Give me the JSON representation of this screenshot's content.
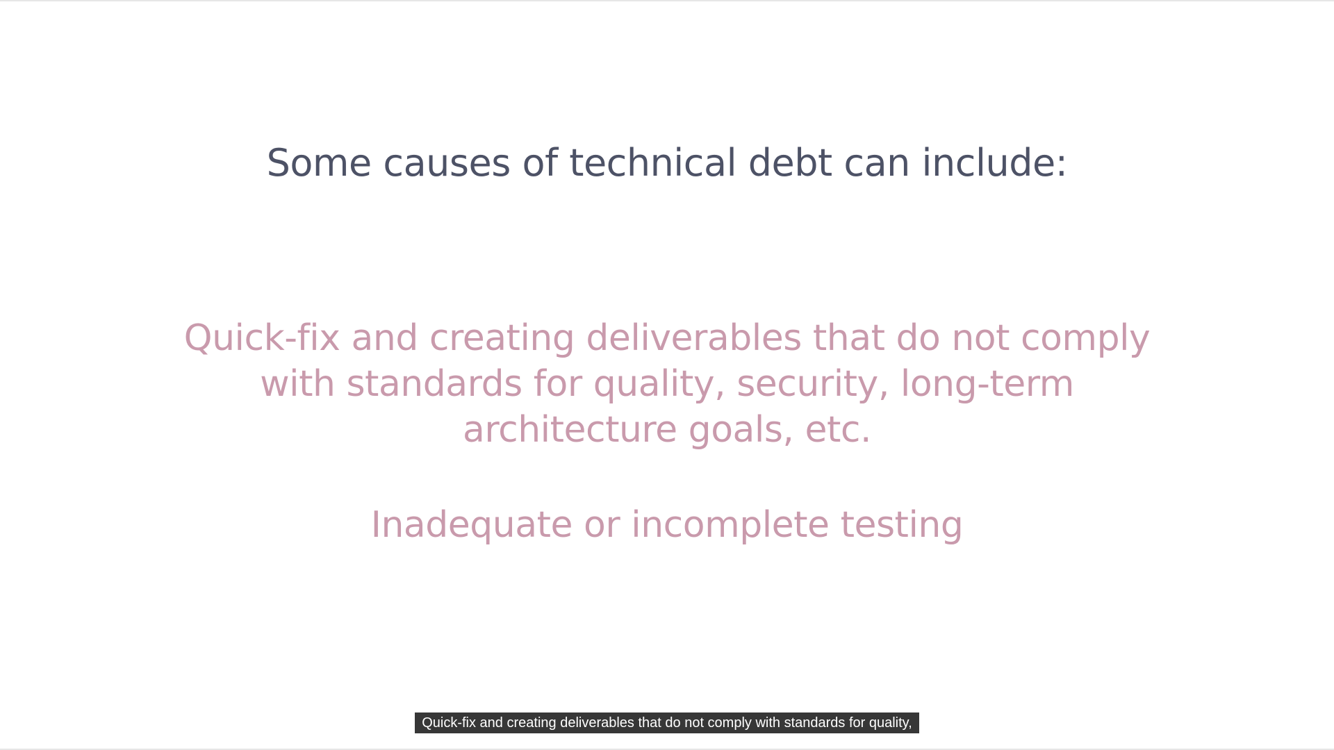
{
  "slide": {
    "title": "Some causes of technical debt can include:",
    "bullets": [
      {
        "lines": [
          "Quick-fix and creating deliverables that do not comply",
          "with standards for quality, security, long-term",
          "architecture goals, etc."
        ]
      },
      {
        "lines": [
          "Inadequate or incomplete testing"
        ]
      }
    ],
    "colors": {
      "title": "#4d5266",
      "bullet": "#c99aac",
      "background": "#ffffff"
    }
  },
  "caption": {
    "text": "Quick-fix and creating deliverables that do not comply with standards for quality,"
  }
}
